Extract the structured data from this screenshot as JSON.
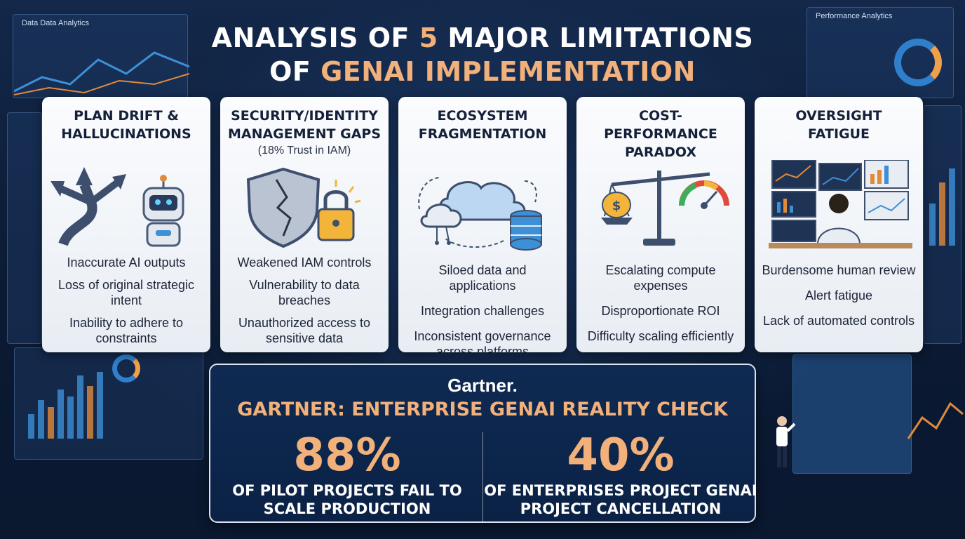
{
  "title": {
    "line1_prefix": "ANALYSIS OF ",
    "line1_accent": "5",
    "line1_suffix": " MAJOR LIMITATIONS",
    "line2_prefix": "OF ",
    "line2_accent": "GENAI IMPLEMENTATION"
  },
  "cards": [
    {
      "title": "PLAN DRIFT &\nHALLUCINATIONS",
      "subtitle": "",
      "icon": "diverging-road-robot-icon",
      "items": [
        "Inaccurate AI outputs",
        "Loss of original strategic intent",
        "Inability to adhere to constraints"
      ]
    },
    {
      "title": "SECURITY/IDENTITY\nMANAGEMENT GAPS",
      "subtitle": "(18% Trust in IAM)",
      "icon": "cracked-shield-lock-icon",
      "items": [
        "Weakened IAM controls",
        "Vulnerability to data breaches",
        "Unauthorized access to sensitive data"
      ]
    },
    {
      "title": "ECOSYSTEM\nFRAGMENTATION",
      "subtitle": "",
      "icon": "cloud-database-icon",
      "items": [
        "Siloed data and applications",
        "Integration challenges",
        "Inconsistent governance across platforms"
      ]
    },
    {
      "title": "COST-PERFORMANCE\nPARADOX",
      "subtitle": "",
      "icon": "scale-money-gauge-icon",
      "items": [
        "Escalating compute expenses",
        "Disproportionate ROI",
        "Difficulty scaling efficiently"
      ]
    },
    {
      "title": "OVERSIGHT\nFATIGUE",
      "subtitle": "",
      "icon": "person-monitors-icon",
      "items": [
        "Burdensome human review",
        "Alert fatigue",
        "Lack of automated controls"
      ]
    }
  ],
  "gartner": {
    "brand": "Gartner.",
    "heading": "GARTNER: ENTERPRISE GENAI REALITY CHECK",
    "stats": [
      {
        "value": "88%",
        "line1": "OF PILOT PROJECTS FAIL TO",
        "line2": "SCALE PRODUCTION"
      },
      {
        "value": "40%",
        "line1": "OF ENTERPRISES PROJECT GENAI",
        "line2": "PROJECT CANCELLATION"
      }
    ]
  },
  "background": {
    "label_top_left": "Data Data Analytics",
    "label_top_right": "Performance Analytics"
  },
  "colors": {
    "accent": "#f2b07a",
    "background": "#0d1e38",
    "card": "#f4f7fa",
    "panel": "#0f2a52"
  }
}
